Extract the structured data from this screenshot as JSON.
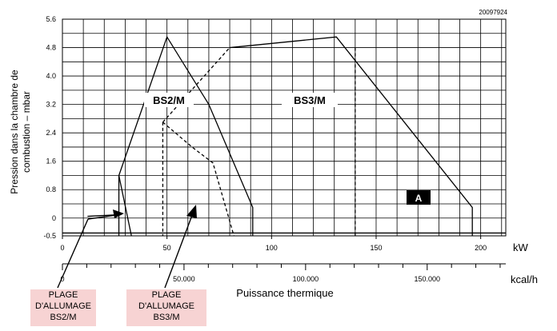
{
  "chart_data": {
    "type": "line",
    "reference": "20097924",
    "ylabel": [
      "Pression dans la chambre de",
      "combustion – mbar"
    ],
    "xlabel": "Puissance thermique",
    "x_unit": "kW",
    "x2_unit": "kcal/h",
    "xlim": [
      0,
      212
    ],
    "ylim": [
      -0.5,
      5.6
    ],
    "y_ticks": [
      "5.6",
      "4.8",
      "4.0",
      "3.2",
      "2.4",
      "1.6",
      "0.8",
      "0",
      "-0.5"
    ],
    "y_tick_values": [
      5.6,
      4.8,
      4.0,
      3.2,
      2.4,
      1.6,
      0.8,
      0,
      -0.5
    ],
    "x_ticks": [
      "0",
      "50",
      "100",
      "150",
      "200"
    ],
    "x_tick_values": [
      0,
      50,
      100,
      150,
      200
    ],
    "x2_ticks": [
      "0",
      "50.000",
      "100.000",
      "150.000"
    ],
    "x2_tick_values_kcal": [
      0,
      50000,
      100000,
      150000
    ],
    "grid": true,
    "series": [
      {
        "name": "BS2/M",
        "style": "solid",
        "x": [
          27,
          50,
          70,
          91,
          91
        ],
        "y": [
          1.2,
          5.1,
          3.2,
          0.3,
          -0.5
        ]
      },
      {
        "name": "BS3/M",
        "style": "solid",
        "x": [
          80,
          131,
          196,
          196
        ],
        "y": [
          4.8,
          5.1,
          0.3,
          -0.5
        ]
      },
      {
        "name": "",
        "style": "dashed",
        "x": [
          48,
          80
        ],
        "y": [
          2.7,
          4.8
        ]
      },
      {
        "name": "",
        "style": "dashed",
        "x": [
          48,
          62,
          72,
          82
        ],
        "y": [
          2.7,
          2.0,
          1.55,
          -0.5
        ]
      }
    ],
    "extra_lines": [
      {
        "style": "solid",
        "x": [
          27,
          27
        ],
        "y": [
          1.2,
          -0.5
        ]
      },
      {
        "style": "solid",
        "x": [
          27,
          33
        ],
        "y": [
          1.2,
          -0.5
        ]
      },
      {
        "style": "solid",
        "x": [
          12,
          28
        ],
        "y": [
          0.05,
          0.1
        ]
      },
      {
        "style": "dashed",
        "x": [
          48,
          48
        ],
        "y": [
          2.7,
          -0.5
        ]
      },
      {
        "style": "dashed",
        "x": [
          140,
          140
        ],
        "y": [
          4.8,
          -0.5
        ]
      },
      {
        "style": "solid",
        "x": [
          0,
          212
        ],
        "y": [
          -0.42,
          -0.42
        ]
      }
    ],
    "labels": {
      "bs2": "BS2/M",
      "bs3": "BS3/M",
      "a": "A"
    },
    "ignition_ranges": [
      {
        "lines": [
          "PLAGE",
          "D'ALLUMAGE",
          "BS2/M"
        ]
      },
      {
        "lines": [
          "PLAGE",
          "D'ALLUMAGE",
          "BS3/M"
        ]
      }
    ]
  }
}
